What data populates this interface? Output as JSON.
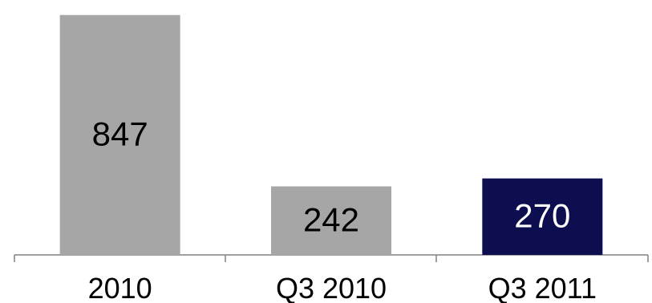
{
  "chart_data": {
    "type": "bar",
    "categories": [
      "2010",
      "Q3 2010",
      "Q3 2011"
    ],
    "values": [
      847,
      242,
      270
    ],
    "data_labels": [
      "847",
      "242",
      "270"
    ],
    "title": "",
    "xlabel": "",
    "ylabel": "",
    "ylim": [
      0,
      900
    ],
    "grid": false,
    "legend": "none",
    "colors": [
      "#a6a6a6",
      "#a6a6a6",
      "#0c0e4f"
    ],
    "label_colors": [
      "#000000",
      "#000000",
      "#ffffff"
    ],
    "axis_color": "#808080"
  }
}
